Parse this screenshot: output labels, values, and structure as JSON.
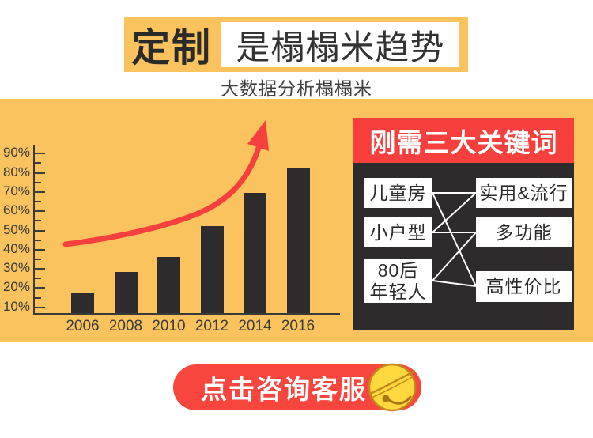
{
  "header": {
    "badge": "定制",
    "title": "是榻榻米趋势",
    "subtitle": "大数据分析榻榻米"
  },
  "keywords_panel": {
    "title": "刚需三大关键词",
    "items_left": {
      "child_room": "儿童房",
      "small_apartment": "小户型",
      "post80_line1": "80后",
      "post80_line2": "年轻人"
    },
    "items_right": {
      "practical": "实用&流行",
      "multifunction": "多功能",
      "cost_effective": "高性价比"
    }
  },
  "cta": {
    "label": "点击咨询客服",
    "icon": "bell-icon"
  },
  "colors": {
    "background_yellow": "#fac35e",
    "accent_red": "#f7403e",
    "dark": "#2d2b2c",
    "white": "#ffffff"
  },
  "chart_data": {
    "type": "bar",
    "categories": [
      "2006",
      "2008",
      "2010",
      "2012",
      "2014",
      "2016"
    ],
    "values": [
      17,
      28,
      36,
      52,
      69,
      82
    ],
    "unit": "%",
    "title": "",
    "xlabel": "",
    "ylabel": "",
    "y_tick_labels": [
      "10%",
      "20%",
      "30%",
      "40%",
      "50%",
      "60%",
      "70%",
      "80%",
      "90%"
    ],
    "ylim": [
      0,
      100
    ],
    "grid": false,
    "legend": false,
    "bar_color": "#2d2b2c",
    "annotations": [
      "rising-trend-arrow"
    ]
  }
}
